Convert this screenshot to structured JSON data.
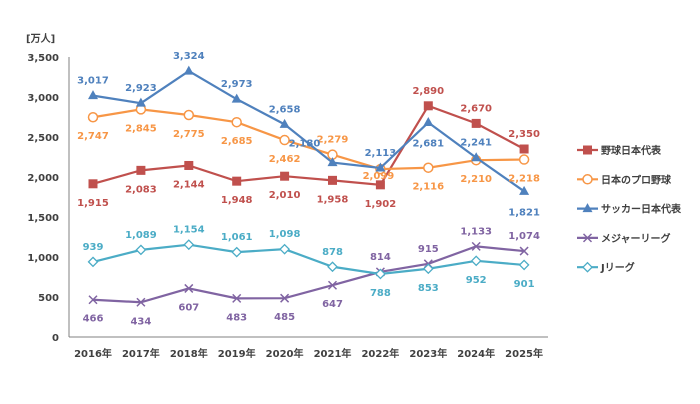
{
  "chart_data": {
    "type": "line",
    "unit_label": "[万人]",
    "categories": [
      "2016年",
      "2017年",
      "2018年",
      "2019年",
      "2020年",
      "2021年",
      "2022年",
      "2023年",
      "2024年",
      "2025年"
    ],
    "ylim": [
      0,
      3500
    ],
    "yticks": [
      0,
      500,
      1000,
      1500,
      2000,
      2500,
      3000,
      3500
    ],
    "ytick_labels": [
      "0",
      "500",
      "1,000",
      "1,500",
      "2,000",
      "2,500",
      "3,000",
      "3,500"
    ],
    "grid": false,
    "legend_position": "right",
    "series": [
      {
        "name": "野球日本代表",
        "color": "#C0504D",
        "marker": "square",
        "values": [
          1915,
          2083,
          2144,
          1948,
          2010,
          1958,
          1902,
          2890,
          2670,
          2350
        ],
        "labels": [
          "1,915",
          "2,083",
          "2,144",
          "1,948",
          "2,010",
          "1,958",
          "1,902",
          "2,890",
          "2,670",
          "2,350"
        ]
      },
      {
        "name": "日本のプロ野球",
        "color": "#F79646",
        "marker": "circle",
        "values": [
          2747,
          2845,
          2775,
          2685,
          2462,
          2279,
          2099,
          2116,
          2210,
          2218
        ],
        "labels": [
          "2,747",
          "2,845",
          "2,775",
          "2,685",
          "2,462",
          "2,279",
          "2,099",
          "2,116",
          "2,210",
          "2,218"
        ]
      },
      {
        "name": "サッカー日本代表",
        "color": "#4F81BD",
        "marker": "triangle",
        "values": [
          3017,
          2923,
          3324,
          2973,
          2658,
          2180,
          2113,
          2681,
          2241,
          1821
        ],
        "labels": [
          "3,017",
          "2,923",
          "3,324",
          "2,973",
          "2,658",
          "2,180",
          "2,113",
          "2,681",
          "2,241",
          "1,821"
        ]
      },
      {
        "name": "メジャーリーグ",
        "color": "#8064A2",
        "marker": "x",
        "values": [
          466,
          434,
          607,
          483,
          485,
          647,
          814,
          915,
          1133,
          1074
        ],
        "labels": [
          "466",
          "434",
          "607",
          "483",
          "485",
          "647",
          "814",
          "915",
          "1,133",
          "1,074"
        ]
      },
      {
        "name": "Jリーグ",
        "color": "#4BACC6",
        "marker": "diamond",
        "values": [
          939,
          1089,
          1154,
          1061,
          1098,
          878,
          788,
          853,
          952,
          901
        ],
        "labels": [
          "939",
          "1,089",
          "1,154",
          "1,061",
          "1,098",
          "878",
          "788",
          "853",
          "952",
          "901"
        ]
      }
    ]
  }
}
